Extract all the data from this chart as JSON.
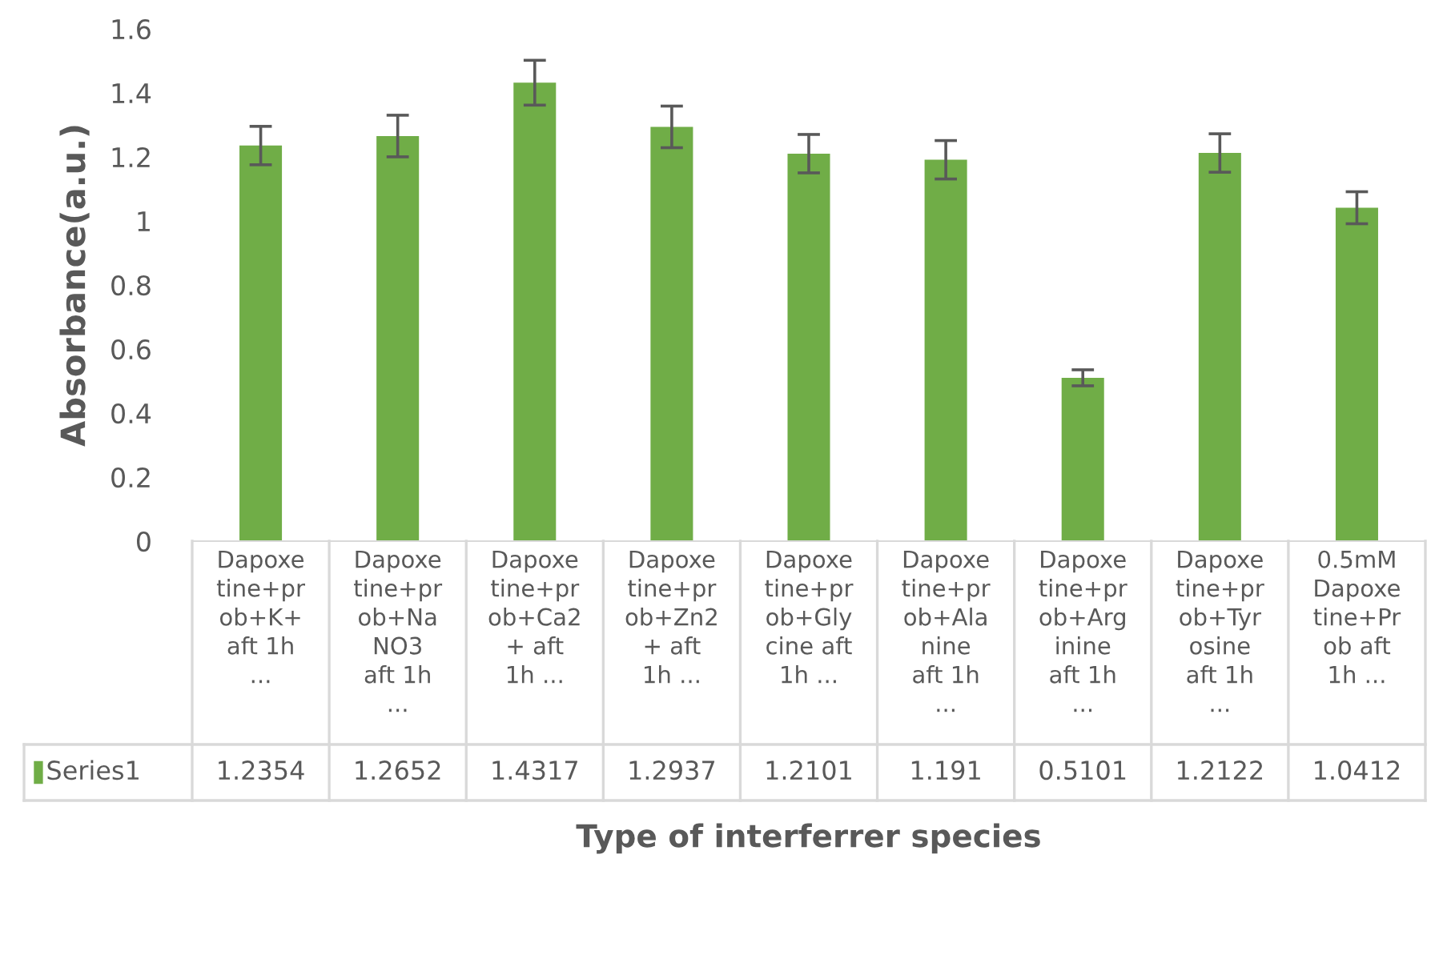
{
  "chart_data": {
    "type": "bar",
    "xlabel": "Type of interferrer species",
    "ylabel": "Absorbance(a.u.)",
    "categories": [
      "Dapoxe\ntine+pr\nob+K+\naft 1h\n...",
      "Dapoxe\ntine+pr\nob+Na\nNO3\naft 1h\n...",
      "Dapoxe\ntine+pr\nob+Ca2\n+ aft\n1h ...",
      "Dapoxe\ntine+pr\nob+Zn2\n+ aft\n1h ...",
      "Dapoxe\ntine+pr\nob+Gly\ncine aft\n1h ...",
      "Dapoxe\ntine+pr\nob+Ala\nnine\naft 1h\n...",
      "Dapoxe\ntine+pr\nob+Arg\ninine\naft 1h\n...",
      "Dapoxe\ntine+pr\nob+Tyr\nosine\naft 1h\n...",
      "0.5mM\nDapoxe\ntine+Pr\nob aft\n1h ..."
    ],
    "series": [
      {
        "name": "Series1",
        "color": "#70ad47",
        "values": [
          1.2354,
          1.2652,
          1.4317,
          1.2937,
          1.2101,
          1.191,
          0.5101,
          1.2122,
          1.0412
        ],
        "errors": [
          0.06,
          0.065,
          0.07,
          0.065,
          0.06,
          0.06,
          0.025,
          0.06,
          0.05
        ]
      }
    ],
    "ylim": [
      0,
      1.6
    ],
    "yticks": [
      0,
      0.2,
      0.4,
      0.6,
      0.8,
      1,
      1.2,
      1.4,
      1.6
    ],
    "grid": false,
    "legend": "bottom left",
    "data_labels": true
  }
}
